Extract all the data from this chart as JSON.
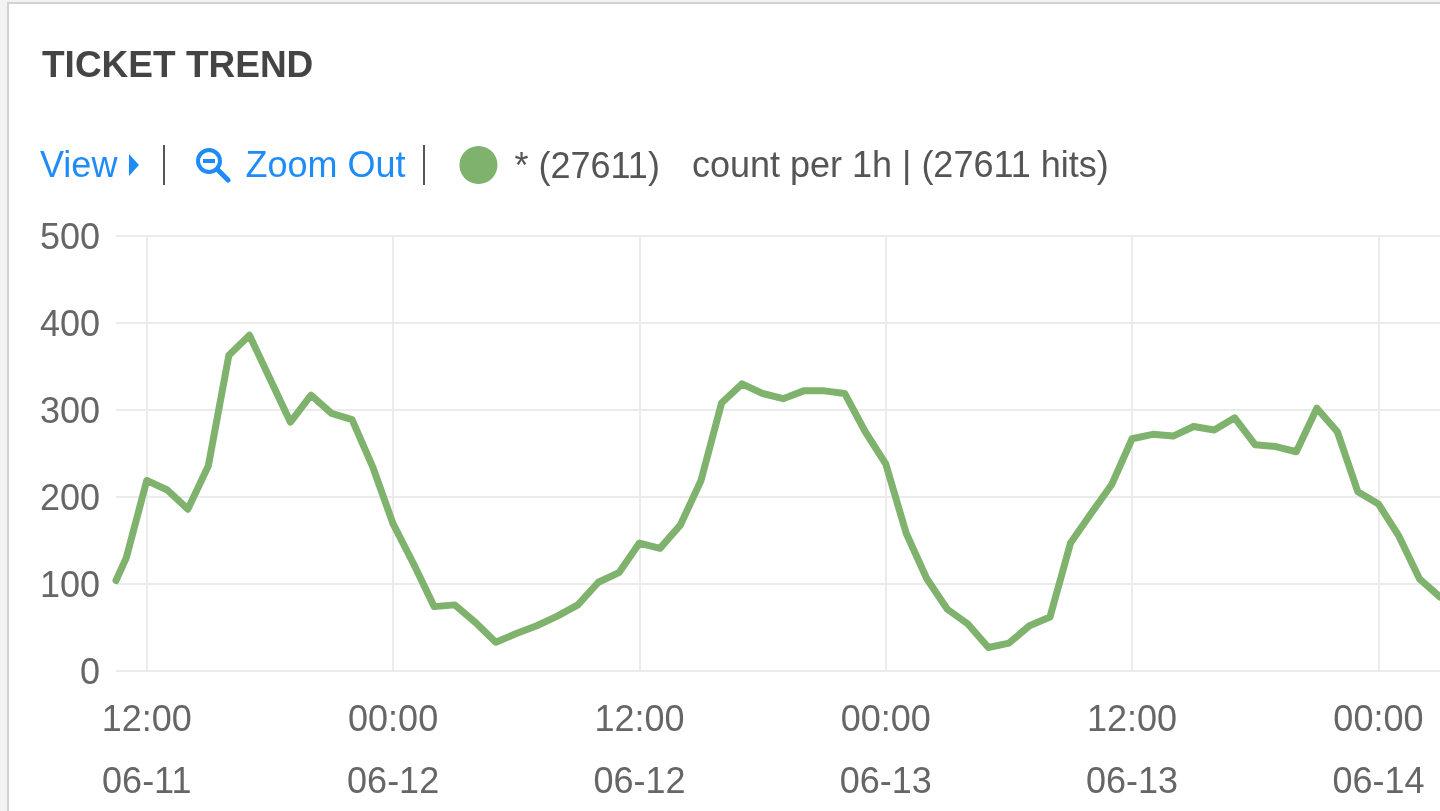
{
  "chart_data": {
    "type": "line",
    "title": "TICKET TREND",
    "annotations": [
      "View",
      "Zoom Out",
      "count per 1h | (27611 hits)"
    ],
    "x": [
      "--06-11T10:30",
      "--06-11T11:00",
      "--06-11T12:00",
      "--06-11T13:00",
      "--06-11T14:00",
      "--06-11T15:00",
      "--06-11T16:00",
      "--06-11T17:00",
      "--06-11T18:00",
      "--06-11T19:00",
      "--06-11T20:00",
      "--06-11T21:00",
      "--06-11T22:00",
      "--06-11T23:00",
      "--06-12T00:00",
      "--06-12T01:00",
      "--06-12T02:00",
      "--06-12T03:00",
      "--06-12T04:00",
      "--06-12T05:00",
      "--06-12T06:00",
      "--06-12T07:00",
      "--06-12T08:00",
      "--06-12T09:00",
      "--06-12T10:00",
      "--06-12T11:00",
      "--06-12T12:00",
      "--06-12T13:00",
      "--06-12T14:00",
      "--06-12T15:00",
      "--06-12T16:00",
      "--06-12T17:00",
      "--06-12T18:00",
      "--06-12T19:00",
      "--06-12T20:00",
      "--06-12T21:00",
      "--06-12T22:00",
      "--06-12T23:00",
      "--06-13T00:00",
      "--06-13T01:00",
      "--06-13T02:00",
      "--06-13T03:00",
      "--06-13T04:00",
      "--06-13T05:00",
      "--06-13T06:00",
      "--06-13T07:00",
      "--06-13T08:00",
      "--06-13T09:00",
      "--06-13T10:00",
      "--06-13T11:00",
      "--06-13T12:00",
      "--06-13T13:00",
      "--06-13T14:00",
      "--06-13T15:00",
      "--06-13T16:00",
      "--06-13T17:00",
      "--06-13T18:00",
      "--06-13T19:00",
      "--06-13T20:00",
      "--06-13T21:00",
      "--06-13T22:00",
      "--06-13T23:00",
      "--06-14T00:00",
      "--06-14T01:00",
      "--06-14T02:00",
      "--06-14T03:00"
    ],
    "series": [
      {
        "name": "* (27611)",
        "color": "#7eb26d",
        "values": [
          104,
          130,
          219,
          208,
          186,
          236,
          363,
          386,
          336,
          286,
          317,
          296,
          289,
          235,
          169,
          123,
          74,
          76,
          56,
          33,
          43,
          52,
          63,
          76,
          102,
          113,
          147,
          141,
          168,
          219,
          308,
          330,
          319,
          313,
          322,
          322,
          319,
          275,
          238,
          158,
          106,
          71,
          54,
          27,
          32,
          52,
          62,
          147,
          181,
          214,
          267,
          272,
          270,
          281,
          277,
          291,
          260,
          258,
          252,
          302,
          275,
          206,
          192,
          155,
          106,
          85
        ]
      }
    ],
    "xlim": [
      "--06-11T10:30",
      "--06-14T03:00"
    ],
    "xticks": [
      {
        "value": "--06-11T12:00",
        "label": "12:00\n06-11"
      },
      {
        "value": "--06-12T00:00",
        "label": "00:00\n06-12"
      },
      {
        "value": "--06-12T12:00",
        "label": "12:00\n06-12"
      },
      {
        "value": "--06-13T00:00",
        "label": "00:00\n06-13"
      },
      {
        "value": "--06-13T12:00",
        "label": "12:00\n06-13"
      },
      {
        "value": "--06-14T00:00",
        "label": "00:00\n06-14"
      }
    ],
    "ylim": [
      0,
      500
    ],
    "yticks": [
      0,
      100,
      200,
      300,
      400,
      500
    ],
    "grid": true,
    "legend": "top left"
  }
}
